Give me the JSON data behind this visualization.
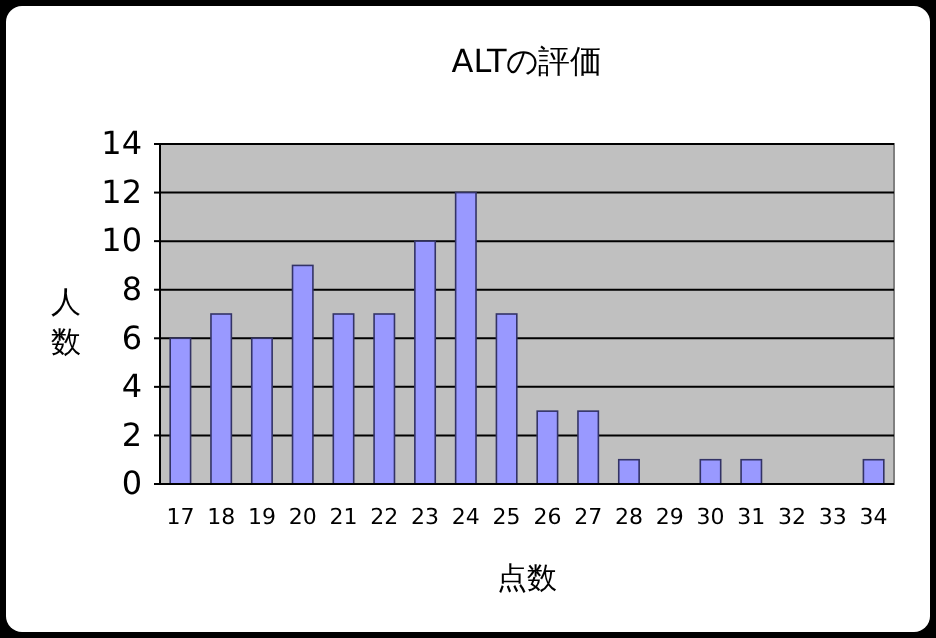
{
  "chart_data": {
    "type": "bar",
    "title": "ALTの評価",
    "xlabel": "点数",
    "ylabel": "人数",
    "categories": [
      "17",
      "18",
      "19",
      "20",
      "21",
      "22",
      "23",
      "24",
      "25",
      "26",
      "27",
      "28",
      "29",
      "30",
      "31",
      "32",
      "33",
      "34"
    ],
    "values": [
      6,
      7,
      6,
      9,
      7,
      7,
      10,
      12,
      7,
      3,
      3,
      1,
      0,
      1,
      1,
      0,
      0,
      1
    ],
    "color": "#9999ff",
    "ylim": [
      0,
      14
    ],
    "yticks": [
      0,
      2,
      4,
      6,
      8,
      10,
      12,
      14
    ],
    "grid": "y"
  }
}
